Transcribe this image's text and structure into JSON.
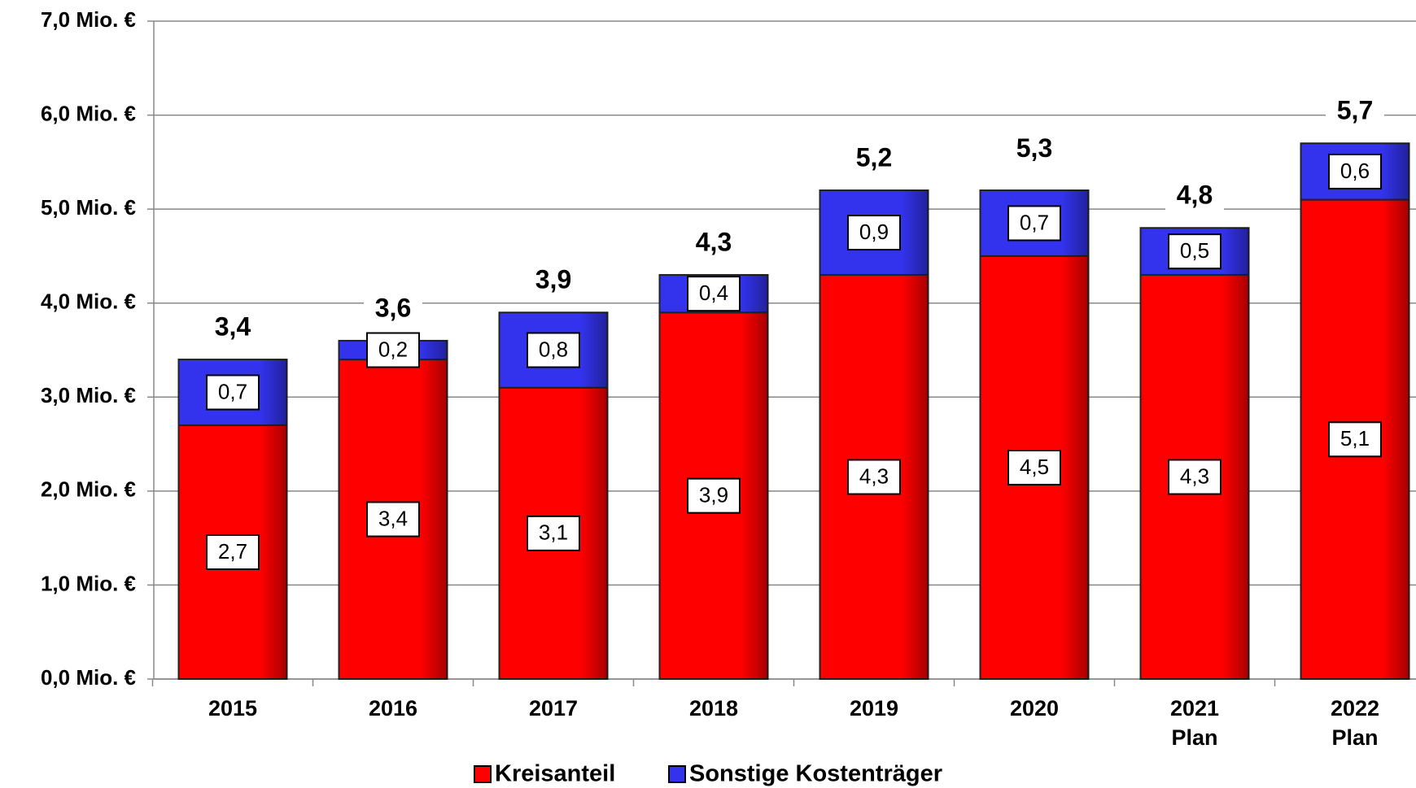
{
  "chart_data": {
    "type": "stacked_bar",
    "categories": [
      "2015",
      "2016",
      "2017",
      "2018",
      "2019",
      "2020",
      "2021 Plan",
      "2022 Plan"
    ],
    "series": [
      {
        "name": "Kreisanteil",
        "color": "#ff0000",
        "values": [
          2.7,
          3.4,
          3.1,
          3.9,
          4.3,
          4.5,
          4.3,
          5.1
        ],
        "value_labels": [
          "2,7",
          "3,4",
          "3,1",
          "3,9",
          "4,3",
          "4,5",
          "4,3",
          "5,1"
        ]
      },
      {
        "name": "Sonstige Kostenträger",
        "color": "#3333ee",
        "values": [
          0.7,
          0.2,
          0.8,
          0.4,
          0.9,
          0.7,
          0.5,
          0.6
        ],
        "value_labels": [
          "0,7",
          "0,2",
          "0,8",
          "0,4",
          "0,9",
          "0,7",
          "0,5",
          "0,6"
        ]
      }
    ],
    "totals": [
      3.4,
      3.6,
      3.9,
      4.3,
      5.2,
      5.3,
      4.8,
      5.7
    ],
    "total_labels": [
      "3,4",
      "3,6",
      "3,9",
      "4,3",
      "5,2",
      "5,3",
      "4,8",
      "5,7"
    ],
    "ylim": [
      0,
      7
    ],
    "yticks": [
      {
        "value": 0,
        "label": "0,0 Mio. €"
      },
      {
        "value": 1,
        "label": "1,0 Mio. €"
      },
      {
        "value": 2,
        "label": "2,0 Mio. €"
      },
      {
        "value": 3,
        "label": "3,0 Mio. €"
      },
      {
        "value": 4,
        "label": "4,0 Mio. €"
      },
      {
        "value": 5,
        "label": "5,0 Mio. €"
      },
      {
        "value": 6,
        "label": "6,0 Mio. €"
      },
      {
        "value": 7,
        "label": "7,0 Mio. €"
      }
    ],
    "grid": true,
    "legend": "bottom"
  }
}
